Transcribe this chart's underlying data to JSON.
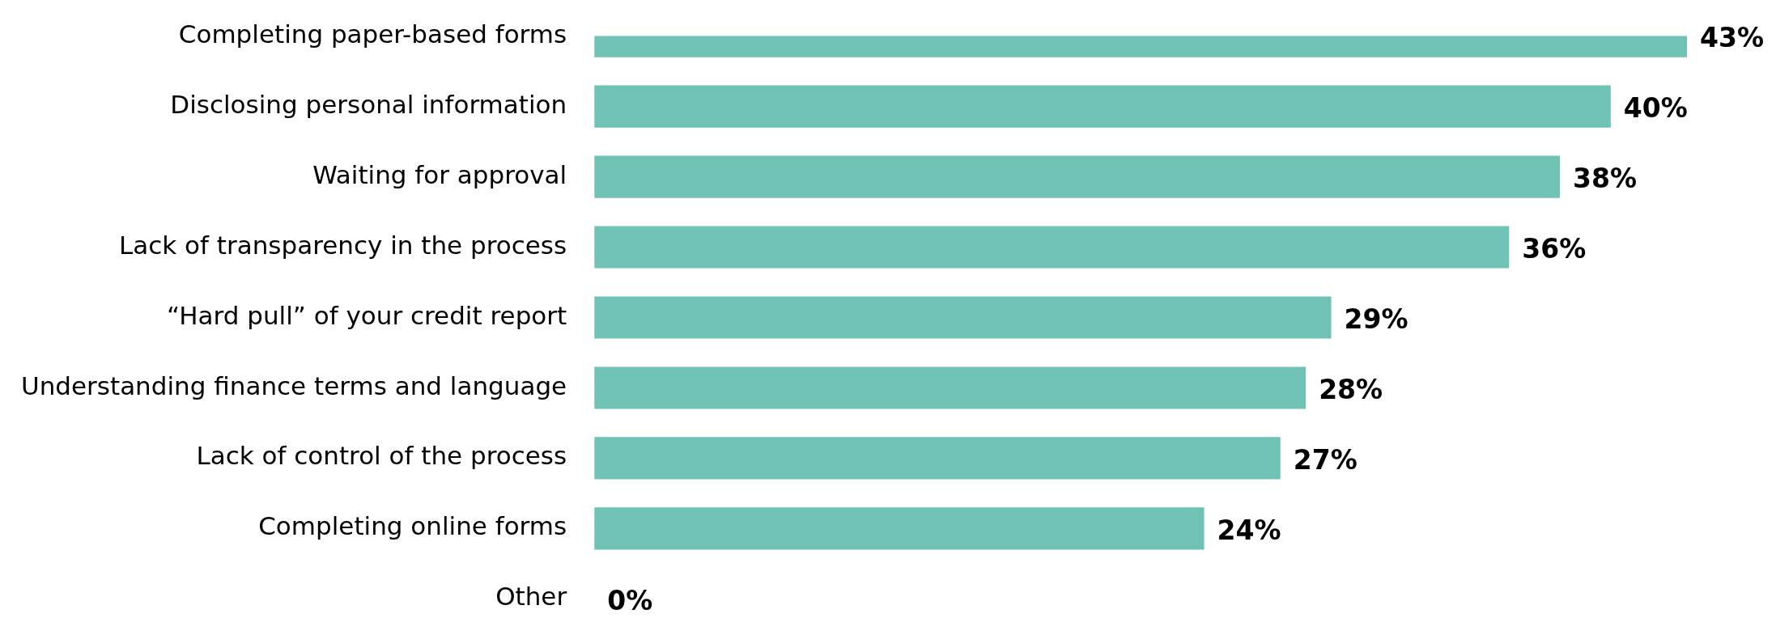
{
  "chart_data": {
    "type": "bar",
    "orientation": "horizontal",
    "categories": [
      "Completing paper-based forms",
      "Disclosing personal information",
      "Waiting for approval",
      "Lack of transparency in the process",
      "“Hard pull” of your credit report",
      "Understanding finance terms and language",
      "Lack of control of the process",
      "Completing online forms",
      "Other"
    ],
    "values": [
      43,
      40,
      38,
      36,
      29,
      28,
      27,
      24,
      0
    ],
    "value_labels": [
      "43%",
      "40%",
      "38%",
      "36%",
      "29%",
      "28%",
      "27%",
      "24%",
      "0%"
    ],
    "color": "#70c2b4",
    "tick_labels": "y",
    "legend": false
  }
}
